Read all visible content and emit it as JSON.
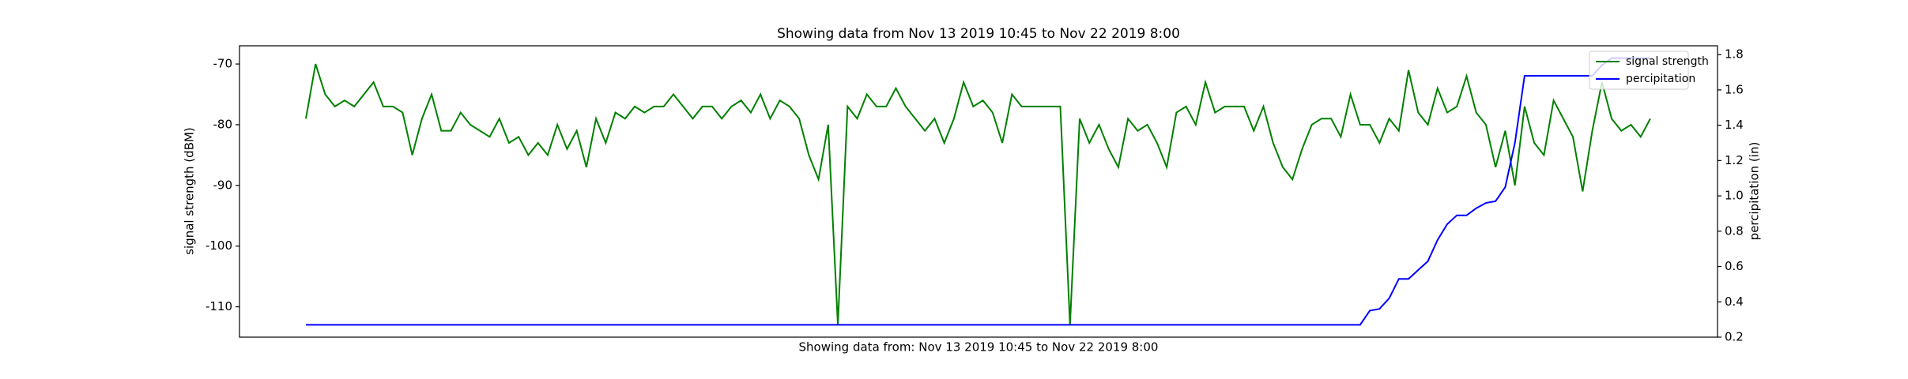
{
  "chart_data": {
    "type": "line",
    "title": "Showing data from Nov 13 2019 10:45 to Nov 22 2019 8:00",
    "xlabel": "Showing data from: Nov 13 2019 10:45 to Nov 22 2019 8:00",
    "ylabel": "signal strength (dBM)",
    "y2label": "percipitation (in)",
    "ylim": [
      -115,
      -67
    ],
    "yticks": [
      -110,
      -100,
      -90,
      -80,
      -70
    ],
    "y2lim": [
      0.2,
      1.85
    ],
    "y2ticks": [
      0.2,
      0.4,
      0.6,
      0.8,
      {
        "value": 1,
        "label": "1.0"
      },
      1.2,
      1.4,
      1.6,
      1.8
    ],
    "legend": "upper right",
    "series": [
      {
        "name": "signal strength",
        "color": "#008000",
        "values": [
          -79,
          -70,
          -75,
          -77,
          -76,
          -77,
          -75,
          -73,
          -77,
          -77,
          -78,
          -85,
          -79,
          -75,
          -81,
          -81,
          -78,
          -80,
          -81,
          -82,
          -79,
          -83,
          -82,
          -85,
          -83,
          -85,
          -80,
          -84,
          -81,
          -87,
          -79,
          -83,
          -78,
          -79,
          -77,
          -78,
          -77,
          -77,
          -75,
          -77,
          -79,
          -77,
          -77,
          -79,
          -77,
          -76,
          -78,
          -75,
          -79,
          -76,
          -77,
          -79,
          -85,
          -89,
          -80,
          -113,
          -77,
          -79,
          -75,
          -77,
          -77,
          -74,
          -77,
          -79,
          -81,
          -79,
          -83,
          -79,
          -73,
          -77,
          -76,
          -78,
          -83,
          -75,
          -77,
          -77,
          -77,
          -77,
          -77,
          -113,
          -79,
          -83,
          -80,
          -84,
          -87,
          -79,
          -81,
          -80,
          -83,
          -87,
          -78,
          -77,
          -80,
          -73,
          -78,
          -77,
          -77,
          -77,
          -81,
          -77,
          -83,
          -87,
          -89,
          -84,
          -80,
          -79,
          -79,
          -82,
          -75,
          -80,
          -80,
          -83,
          -79,
          -81,
          -71,
          -78,
          -80,
          -74,
          -78,
          -77,
          -72,
          -78,
          -80,
          -87,
          -81,
          -90,
          -77,
          -83,
          -85,
          -76,
          -79,
          -82,
          -91,
          -81,
          -73,
          -79,
          -81,
          -80,
          -82,
          -79
        ]
      },
      {
        "name": "percipitation",
        "color": "#0000ff",
        "axis": "y2",
        "values": [
          0.27,
          0.27,
          0.27,
          0.27,
          0.27,
          0.27,
          0.27,
          0.27,
          0.27,
          0.27,
          0.27,
          0.27,
          0.27,
          0.27,
          0.27,
          0.27,
          0.27,
          0.27,
          0.27,
          0.27,
          0.27,
          0.27,
          0.27,
          0.27,
          0.27,
          0.27,
          0.27,
          0.27,
          0.27,
          0.27,
          0.27,
          0.27,
          0.27,
          0.27,
          0.27,
          0.27,
          0.27,
          0.27,
          0.27,
          0.27,
          0.27,
          0.27,
          0.27,
          0.27,
          0.27,
          0.27,
          0.27,
          0.27,
          0.27,
          0.27,
          0.27,
          0.27,
          0.27,
          0.27,
          0.27,
          0.27,
          0.27,
          0.27,
          0.27,
          0.27,
          0.27,
          0.27,
          0.27,
          0.27,
          0.27,
          0.27,
          0.27,
          0.27,
          0.27,
          0.27,
          0.27,
          0.27,
          0.27,
          0.27,
          0.27,
          0.27,
          0.27,
          0.27,
          0.27,
          0.27,
          0.27,
          0.27,
          0.27,
          0.27,
          0.27,
          0.27,
          0.27,
          0.27,
          0.27,
          0.27,
          0.27,
          0.27,
          0.27,
          0.27,
          0.27,
          0.27,
          0.27,
          0.27,
          0.27,
          0.27,
          0.27,
          0.27,
          0.27,
          0.27,
          0.27,
          0.27,
          0.27,
          0.27,
          0.27,
          0.27,
          0.35,
          0.36,
          0.42,
          0.53,
          0.53,
          0.58,
          0.63,
          0.75,
          0.84,
          0.89,
          0.89,
          0.93,
          0.96,
          0.97,
          1.05,
          1.3,
          1.68,
          1.68,
          1.68,
          1.68,
          1.68,
          1.68,
          1.68,
          1.68,
          1.74,
          1.78,
          1.78,
          1.78,
          1.78,
          1.78
        ]
      }
    ]
  }
}
